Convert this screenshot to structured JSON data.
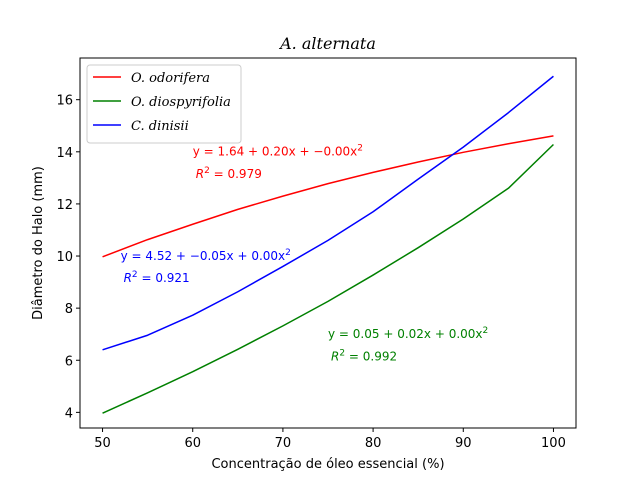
{
  "chart_data": {
    "type": "line",
    "title": "A. alternata",
    "xlabel": "Concentração de óleo essencial (%)",
    "ylabel": "Diâmetro do Halo (mm)",
    "xlim": [
      47.5,
      102.5
    ],
    "ylim": [
      3.4,
      17.6
    ],
    "xticks": [
      50,
      60,
      70,
      80,
      90,
      100
    ],
    "yticks": [
      4,
      6,
      8,
      10,
      12,
      14,
      16
    ],
    "grid": false,
    "legend_position": "top-left",
    "x": [
      50,
      55,
      60,
      65,
      70,
      75,
      80,
      85,
      90,
      95,
      100
    ],
    "series": [
      {
        "name": "O. odorifera",
        "color": "#ff0000",
        "values": [
          9.97,
          10.63,
          11.22,
          11.79,
          12.3,
          12.78,
          13.21,
          13.61,
          13.98,
          14.31,
          14.61
        ]
      },
      {
        "name": "O. diospyrifolia",
        "color": "#008000",
        "values": [
          3.97,
          4.75,
          5.56,
          6.42,
          7.32,
          8.26,
          9.27,
          10.32,
          11.42,
          12.6,
          14.28
        ]
      },
      {
        "name": "C. dinisii",
        "color": "#0000ff",
        "values": [
          6.4,
          6.96,
          7.73,
          8.63,
          9.6,
          10.6,
          11.7,
          12.95,
          14.18,
          15.5,
          16.9
        ]
      }
    ],
    "annotations": [
      {
        "series": "O. odorifera",
        "color": "#ff0000",
        "x": 60,
        "y": 13.85,
        "equation": "y = 1.64 + 0.20x + −0.00x",
        "eq_exp": "2",
        "r2_prefix": "R",
        "r2_exp": "2",
        "r2_value": " = 0.979",
        "r2_y": 13.0
      },
      {
        "series": "C. dinisii",
        "color": "#0000ff",
        "x": 52,
        "y": 9.85,
        "equation": "y = 4.52 + −0.05x + 0.00x",
        "eq_exp": "2",
        "r2_prefix": "R",
        "r2_exp": "2",
        "r2_value": " = 0.921",
        "r2_y": 9.0
      },
      {
        "series": "O. diospyrifolia",
        "color": "#008000",
        "x": 75,
        "y": 6.85,
        "equation": "y = 0.05 + 0.02x + 0.00x",
        "eq_exp": "2",
        "r2_prefix": "R",
        "r2_exp": "2",
        "r2_value": " = 0.992",
        "r2_y": 6.0
      }
    ]
  }
}
